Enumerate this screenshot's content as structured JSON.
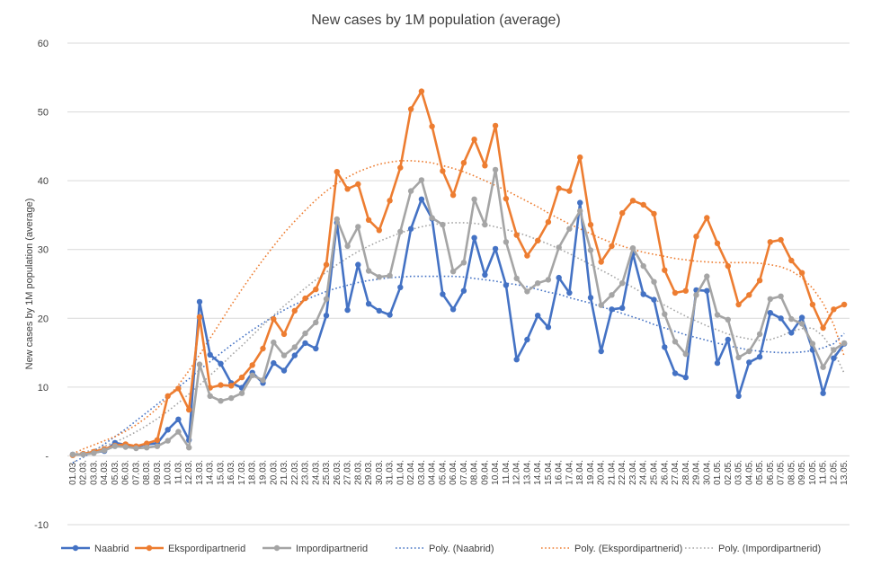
{
  "chart_data": {
    "type": "line",
    "title": "New cases by  1M population (average)",
    "ylabel": "New cases by 1M population (average)",
    "xlabel": "",
    "ylim": [
      -10,
      60
    ],
    "yticks": [
      {
        "value": 60,
        "label": "60"
      },
      {
        "value": 50,
        "label": "50"
      },
      {
        "value": 40,
        "label": "40"
      },
      {
        "value": 30,
        "label": "30"
      },
      {
        "value": 20,
        "label": "20"
      },
      {
        "value": 10,
        "label": "10"
      },
      {
        "value": 0,
        "label": "-"
      },
      {
        "value": -10,
        "label": "-10"
      }
    ],
    "grid": true,
    "legend_position": "bottom",
    "categories": [
      "01.03.",
      "02.03.",
      "03.03.",
      "04.03.",
      "05.03.",
      "06.03.",
      "07.03.",
      "08.03.",
      "09.03.",
      "10.03.",
      "11.03.",
      "12.03.",
      "13.03.",
      "14.03.",
      "15.03.",
      "16.03.",
      "17.03.",
      "18.03.",
      "19.03.",
      "20.03.",
      "21.03.",
      "22.03.",
      "23.03.",
      "24.03.",
      "25.03.",
      "26.03.",
      "27.03.",
      "28.03.",
      "29.03.",
      "30.03.",
      "31.03.",
      "01.04.",
      "02.04.",
      "03.04.",
      "04.04.",
      "05.04.",
      "06.04.",
      "07.04.",
      "08.04.",
      "09.04.",
      "10.04.",
      "11.04.",
      "12.04.",
      "13.04.",
      "14.04.",
      "15.04.",
      "16.04.",
      "17.04.",
      "18.04.",
      "19.04.",
      "20.04.",
      "21.04.",
      "22.04.",
      "23.04.",
      "24.04.",
      "25.04.",
      "26.04.",
      "27.04.",
      "28.04.",
      "29.04.",
      "30.04.",
      "01.05.",
      "02.05.",
      "03.05.",
      "04.05.",
      "05.05.",
      "06.05.",
      "07.05.",
      "08.05.",
      "09.05.",
      "10.05.",
      "11.05.",
      "12.05.",
      "13.05."
    ],
    "series": [
      {
        "name": "Naabrid",
        "color": "#4472c4",
        "values": [
          0.2,
          0.2,
          0.5,
          0.7,
          1.9,
          1.6,
          1.3,
          1.7,
          1.8,
          3.8,
          5.3,
          2.3,
          22.4,
          14.7,
          13.4,
          10.6,
          9.9,
          12.1,
          10.6,
          13.5,
          12.4,
          14.6,
          16.4,
          15.6,
          20.4,
          33.9,
          21.2,
          27.8,
          22.1,
          21.1,
          20.5,
          24.5,
          33.0,
          37.3,
          34.5,
          23.5,
          21.3,
          24.0,
          31.7,
          26.3,
          30.1,
          24.8,
          14.0,
          16.9,
          20.4,
          18.7,
          25.9,
          23.7,
          36.8,
          23.0,
          15.2,
          21.3,
          21.5,
          29.4,
          23.5,
          22.7,
          15.8,
          12.0,
          11.4,
          24.1,
          24.0,
          13.5,
          16.9,
          8.7,
          13.6,
          14.4,
          20.8,
          20.0,
          17.9,
          20.1,
          15.4,
          9.1,
          14.2,
          16.3
        ]
      },
      {
        "name": "Ekspordipartnerid",
        "color": "#ed7d31",
        "values": [
          0.1,
          0.3,
          0.6,
          1.0,
          1.5,
          1.7,
          1.4,
          1.8,
          2.3,
          8.7,
          9.8,
          6.7,
          20.2,
          9.9,
          10.3,
          10.2,
          11.4,
          13.2,
          15.6,
          19.9,
          17.7,
          21.1,
          22.9,
          24.2,
          27.8,
          41.3,
          38.8,
          39.5,
          34.3,
          32.8,
          37.1,
          41.9,
          50.4,
          53.0,
          47.9,
          41.4,
          37.9,
          42.6,
          46.0,
          42.2,
          48.0,
          37.4,
          32.1,
          29.1,
          31.3,
          34.0,
          38.9,
          38.5,
          43.4,
          33.6,
          28.2,
          30.5,
          35.3,
          37.1,
          36.5,
          35.2,
          27.0,
          23.7,
          24.0,
          31.9,
          34.6,
          30.9,
          27.6,
          22.0,
          23.4,
          25.5,
          31.1,
          31.4,
          28.4,
          26.6,
          22.0,
          18.6,
          21.3,
          22.0
        ]
      },
      {
        "name": "Impordipartnerid",
        "color": "#a5a5a5",
        "values": [
          0.2,
          0.2,
          0.4,
          0.8,
          1.4,
          1.3,
          1.1,
          1.2,
          1.4,
          2.2,
          3.5,
          1.2,
          13.3,
          8.7,
          8.0,
          8.4,
          9.1,
          11.7,
          11.0,
          16.5,
          14.6,
          15.8,
          17.8,
          19.4,
          22.8,
          34.4,
          30.5,
          33.3,
          26.9,
          26.0,
          26.2,
          32.6,
          38.5,
          40.1,
          34.6,
          33.6,
          26.8,
          28.1,
          37.3,
          33.6,
          41.6,
          31.1,
          25.8,
          23.9,
          25.1,
          25.6,
          30.3,
          33.0,
          35.6,
          29.9,
          21.9,
          23.4,
          25.1,
          30.2,
          27.6,
          25.3,
          20.6,
          16.6,
          14.8,
          23.4,
          26.1,
          20.5,
          19.8,
          14.3,
          15.2,
          17.7,
          22.8,
          23.2,
          19.9,
          19.2,
          16.3,
          12.9,
          15.4,
          16.4
        ]
      },
      {
        "name": "Poly. (Naabrid)",
        "color": "#4472c4",
        "trendline": true,
        "values": [
          -1.0,
          -0.2,
          0.7,
          1.7,
          2.8,
          3.9,
          5.1,
          6.3,
          7.5,
          8.7,
          10.0,
          11.2,
          12.5,
          13.7,
          14.9,
          16.1,
          17.2,
          18.3,
          19.3,
          20.3,
          21.2,
          22.0,
          22.7,
          23.3,
          23.9,
          24.4,
          24.8,
          25.2,
          25.5,
          25.7,
          25.9,
          26.0,
          26.1,
          26.1,
          26.1,
          26.1,
          26.1,
          26.0,
          25.8,
          25.6,
          25.4,
          25.1,
          24.9,
          24.6,
          24.2,
          23.8,
          23.5,
          23.0,
          22.6,
          22.2,
          21.7,
          21.2,
          20.7,
          20.2,
          19.7,
          19.1,
          18.6,
          18.1,
          17.6,
          17.2,
          16.8,
          16.4,
          16.0,
          15.7,
          15.4,
          15.2,
          15.1,
          15.0,
          15.0,
          15.1,
          15.3,
          15.7,
          16.3,
          17.8
        ]
      },
      {
        "name": "Poly. (Ekspordipartnerid)",
        "color": "#ed7d31",
        "trendline": true,
        "values": [
          0.3,
          1.0,
          1.6,
          2.2,
          2.8,
          3.6,
          4.5,
          5.6,
          6.9,
          8.5,
          10.3,
          12.4,
          14.7,
          17.1,
          19.5,
          21.9,
          24.2,
          26.4,
          28.5,
          30.5,
          32.4,
          34.1,
          35.7,
          37.2,
          38.5,
          39.6,
          40.5,
          41.3,
          41.9,
          42.4,
          42.7,
          42.9,
          42.9,
          42.8,
          42.6,
          42.2,
          41.8,
          41.3,
          40.7,
          40.0,
          39.3,
          38.6,
          37.8,
          37.0,
          36.2,
          35.3,
          34.5,
          33.7,
          33.0,
          32.3,
          31.6,
          31.0,
          30.5,
          30.0,
          29.6,
          29.3,
          29.0,
          28.7,
          28.5,
          28.3,
          28.2,
          28.1,
          28.1,
          28.1,
          28.1,
          28.0,
          27.8,
          27.5,
          26.9,
          25.9,
          24.4,
          22.2,
          19.1,
          14.5
        ]
      },
      {
        "name": "Poly. (Impordipartnerid)",
        "color": "#a5a5a5",
        "trendline": true,
        "values": [
          0.2,
          0.5,
          0.9,
          1.4,
          2.0,
          2.7,
          3.5,
          4.4,
          5.4,
          6.5,
          7.7,
          9.0,
          10.3,
          11.7,
          13.1,
          14.6,
          16.0,
          17.5,
          19.0,
          20.4,
          21.8,
          23.1,
          24.4,
          25.6,
          26.7,
          27.8,
          28.8,
          29.7,
          30.5,
          31.2,
          31.8,
          32.4,
          32.9,
          33.3,
          33.6,
          33.8,
          33.9,
          33.9,
          33.8,
          33.6,
          33.3,
          32.9,
          32.5,
          32.0,
          31.4,
          30.8,
          30.1,
          29.4,
          28.6,
          27.8,
          27.0,
          26.2,
          25.3,
          24.5,
          23.6,
          22.8,
          21.9,
          21.1,
          20.3,
          19.6,
          18.9,
          18.3,
          17.7,
          17.3,
          17.0,
          16.8,
          16.9,
          17.4,
          18.1,
          18.5,
          18.6,
          17.4,
          15.2,
          12.0
        ]
      }
    ]
  }
}
